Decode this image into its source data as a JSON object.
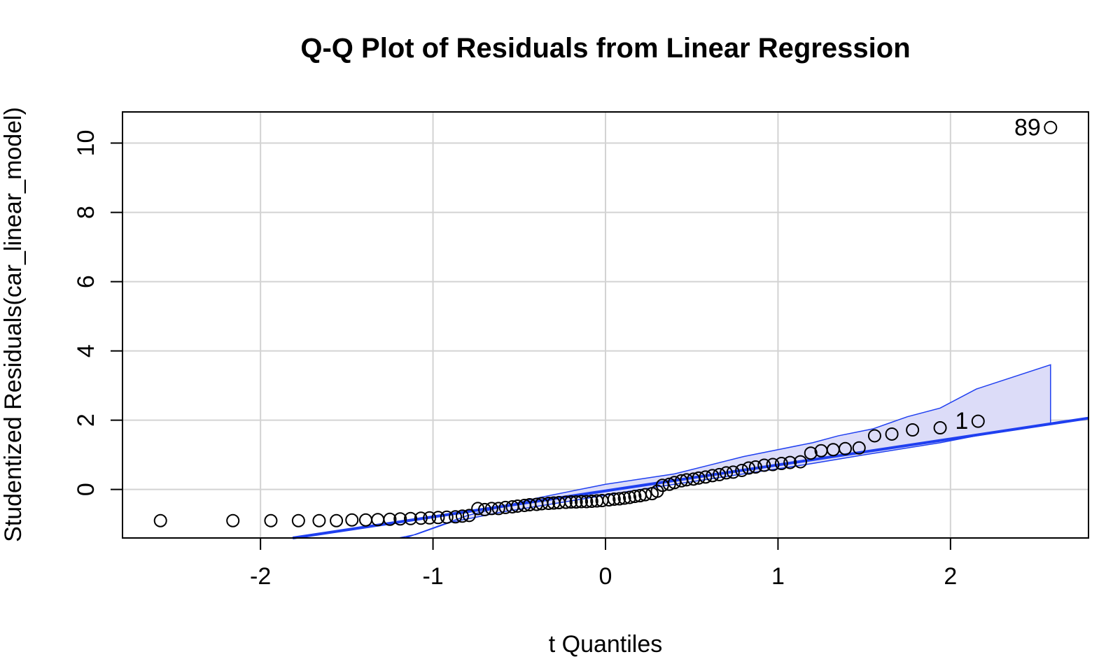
{
  "chart_data": {
    "type": "scatter",
    "title": "Q-Q Plot of Residuals from Linear Regression",
    "xlabel": "t Quantiles",
    "ylabel": "Studentized Residuals(car_linear_model)",
    "xlim": [
      -2.8,
      2.8
    ],
    "ylim": [
      -1.4,
      10.9
    ],
    "x_ticks": [
      -2,
      -1,
      0,
      1,
      2
    ],
    "y_ticks": [
      0,
      2,
      4,
      6,
      8,
      10
    ],
    "x_tick_labels": [
      "-2",
      "-1",
      "0",
      "1",
      "2"
    ],
    "y_tick_labels": [
      "0",
      "2",
      "4",
      "6",
      "8",
      "10"
    ],
    "grid": true,
    "colors": {
      "reference_line": "#1f3ff0",
      "envelope_fill": "#dcdcf8",
      "envelope_edge": "#1f3ff0",
      "grid": "#d3d3d3",
      "points": "#000000"
    },
    "reference_line": {
      "slope": 0.75,
      "intercept": -0.04
    },
    "envelope": {
      "upper": [
        [
          -1.16,
          -1.4
        ],
        [
          -0.8,
          -0.75
        ],
        [
          -0.4,
          -0.25
        ],
        [
          0,
          0.15
        ],
        [
          0.4,
          0.45
        ],
        [
          0.8,
          0.95
        ],
        [
          1.0,
          1.15
        ],
        [
          1.2,
          1.35
        ],
        [
          1.35,
          1.55
        ],
        [
          1.55,
          1.75
        ],
        [
          1.75,
          2.1
        ],
        [
          1.94,
          2.35
        ],
        [
          2.15,
          2.9
        ],
        [
          2.58,
          3.6
        ]
      ],
      "lower": [
        [
          2.58,
          1.9
        ],
        [
          2.15,
          1.55
        ],
        [
          1.94,
          1.35
        ],
        [
          1.5,
          1.0
        ],
        [
          1.2,
          0.75
        ],
        [
          1.0,
          0.6
        ],
        [
          0.6,
          0.3
        ],
        [
          0.2,
          0.0
        ],
        [
          -0.2,
          -0.33
        ],
        [
          -0.6,
          -0.65
        ],
        [
          -0.9,
          -0.95
        ],
        [
          -1.1,
          -1.3
        ],
        [
          -1.2,
          -1.4
        ]
      ]
    },
    "points_x": [
      -2.58,
      -2.16,
      -1.94,
      -1.78,
      -1.66,
      -1.56,
      -1.47,
      -1.39,
      -1.32,
      -1.25,
      -1.19,
      -1.13,
      -1.07,
      -1.02,
      -0.97,
      -0.92,
      -0.87,
      -0.83,
      -0.79,
      -0.74,
      -0.7,
      -0.66,
      -0.62,
      -0.58,
      -0.54,
      -0.51,
      -0.47,
      -0.44,
      -0.4,
      -0.37,
      -0.33,
      -0.3,
      -0.27,
      -0.23,
      -0.2,
      -0.17,
      -0.14,
      -0.11,
      -0.08,
      -0.05,
      -0.02,
      0.02,
      0.05,
      0.08,
      0.11,
      0.14,
      0.17,
      0.2,
      0.23,
      0.27,
      0.3,
      0.33,
      0.37,
      0.4,
      0.44,
      0.47,
      0.51,
      0.54,
      0.58,
      0.62,
      0.66,
      0.7,
      0.74,
      0.79,
      0.83,
      0.87,
      0.92,
      0.97,
      1.02,
      1.07,
      1.13,
      1.19,
      1.25,
      1.32,
      1.39,
      1.47,
      1.56,
      1.66,
      1.78,
      1.94,
      2.16,
      2.58
    ],
    "points_y": [
      -0.9,
      -0.9,
      -0.9,
      -0.9,
      -0.9,
      -0.9,
      -0.88,
      -0.88,
      -0.87,
      -0.86,
      -0.85,
      -0.84,
      -0.83,
      -0.82,
      -0.81,
      -0.8,
      -0.79,
      -0.77,
      -0.75,
      -0.55,
      -0.58,
      -0.55,
      -0.55,
      -0.52,
      -0.5,
      -0.48,
      -0.46,
      -0.44,
      -0.43,
      -0.41,
      -0.4,
      -0.39,
      -0.38,
      -0.37,
      -0.36,
      -0.36,
      -0.35,
      -0.35,
      -0.34,
      -0.33,
      -0.32,
      -0.3,
      -0.28,
      -0.27,
      -0.25,
      -0.23,
      -0.2,
      -0.18,
      -0.15,
      -0.12,
      -0.05,
      0.12,
      0.15,
      0.2,
      0.25,
      0.28,
      0.3,
      0.33,
      0.36,
      0.4,
      0.43,
      0.48,
      0.5,
      0.55,
      0.62,
      0.65,
      0.7,
      0.72,
      0.75,
      0.78,
      0.8,
      1.05,
      1.12,
      1.15,
      1.18,
      1.2,
      1.55,
      1.6,
      1.72,
      1.78,
      1.97,
      10.45
    ],
    "point_labels": [
      {
        "text": "89",
        "x": 2.58,
        "y": 10.45
      },
      {
        "text": "1",
        "x": 2.16,
        "y": 1.97
      }
    ]
  }
}
